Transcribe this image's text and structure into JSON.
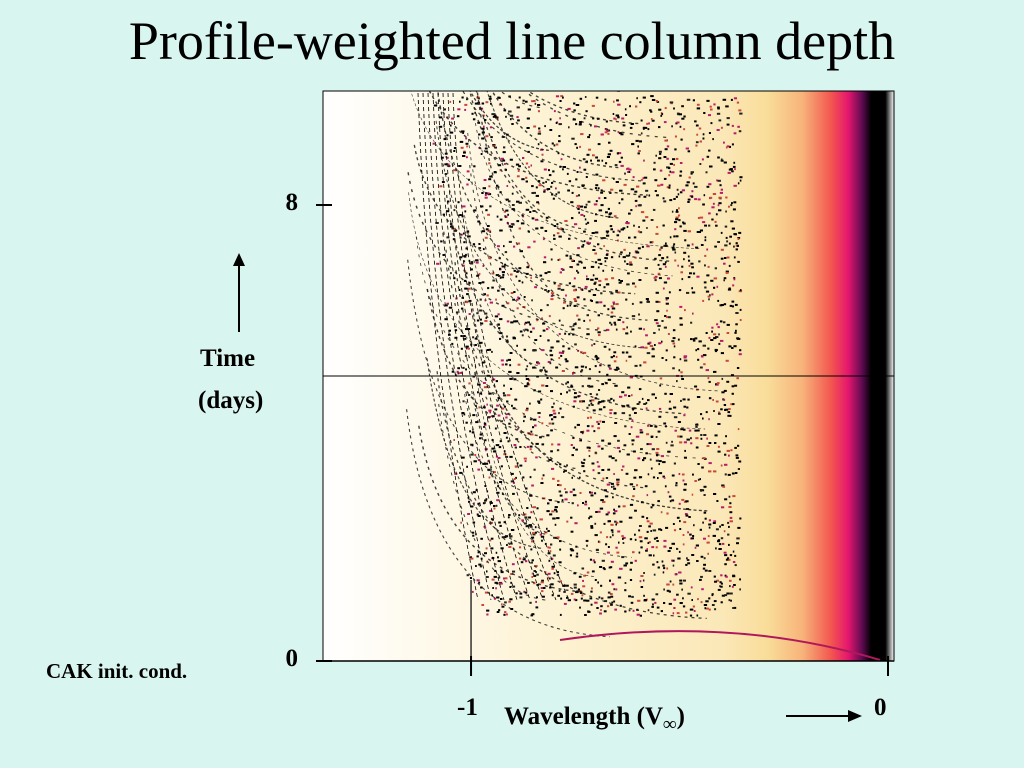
{
  "slide": {
    "title": "Profile-weighted line column depth",
    "note": "CAK init. cond."
  },
  "chart_data": {
    "type": "heatmap",
    "title": "Profile-weighted line column depth",
    "xlabel": "Wavelength (V",
    "xlabel_sub": "∞",
    "xlabel_close": ")",
    "ylabel_line1": "Time",
    "ylabel_line2": "(days)",
    "xlim": [
      -1.35,
      0.0
    ],
    "ylim": [
      0,
      10
    ],
    "x_ticks": [
      {
        "value": -1,
        "label": "-1"
      },
      {
        "value": 0,
        "label": "0"
      }
    ],
    "y_ticks": [
      {
        "value": 0,
        "label": "0"
      },
      {
        "value": 8,
        "label": "8"
      }
    ],
    "horizontal_marker_time": 5,
    "colormap": [
      "#ffffff",
      "#fdf0c6",
      "#f9e19a",
      "#f7b37a",
      "#f3564f",
      "#e4166e",
      "#5a0a50",
      "#000000"
    ],
    "grid": false
  }
}
